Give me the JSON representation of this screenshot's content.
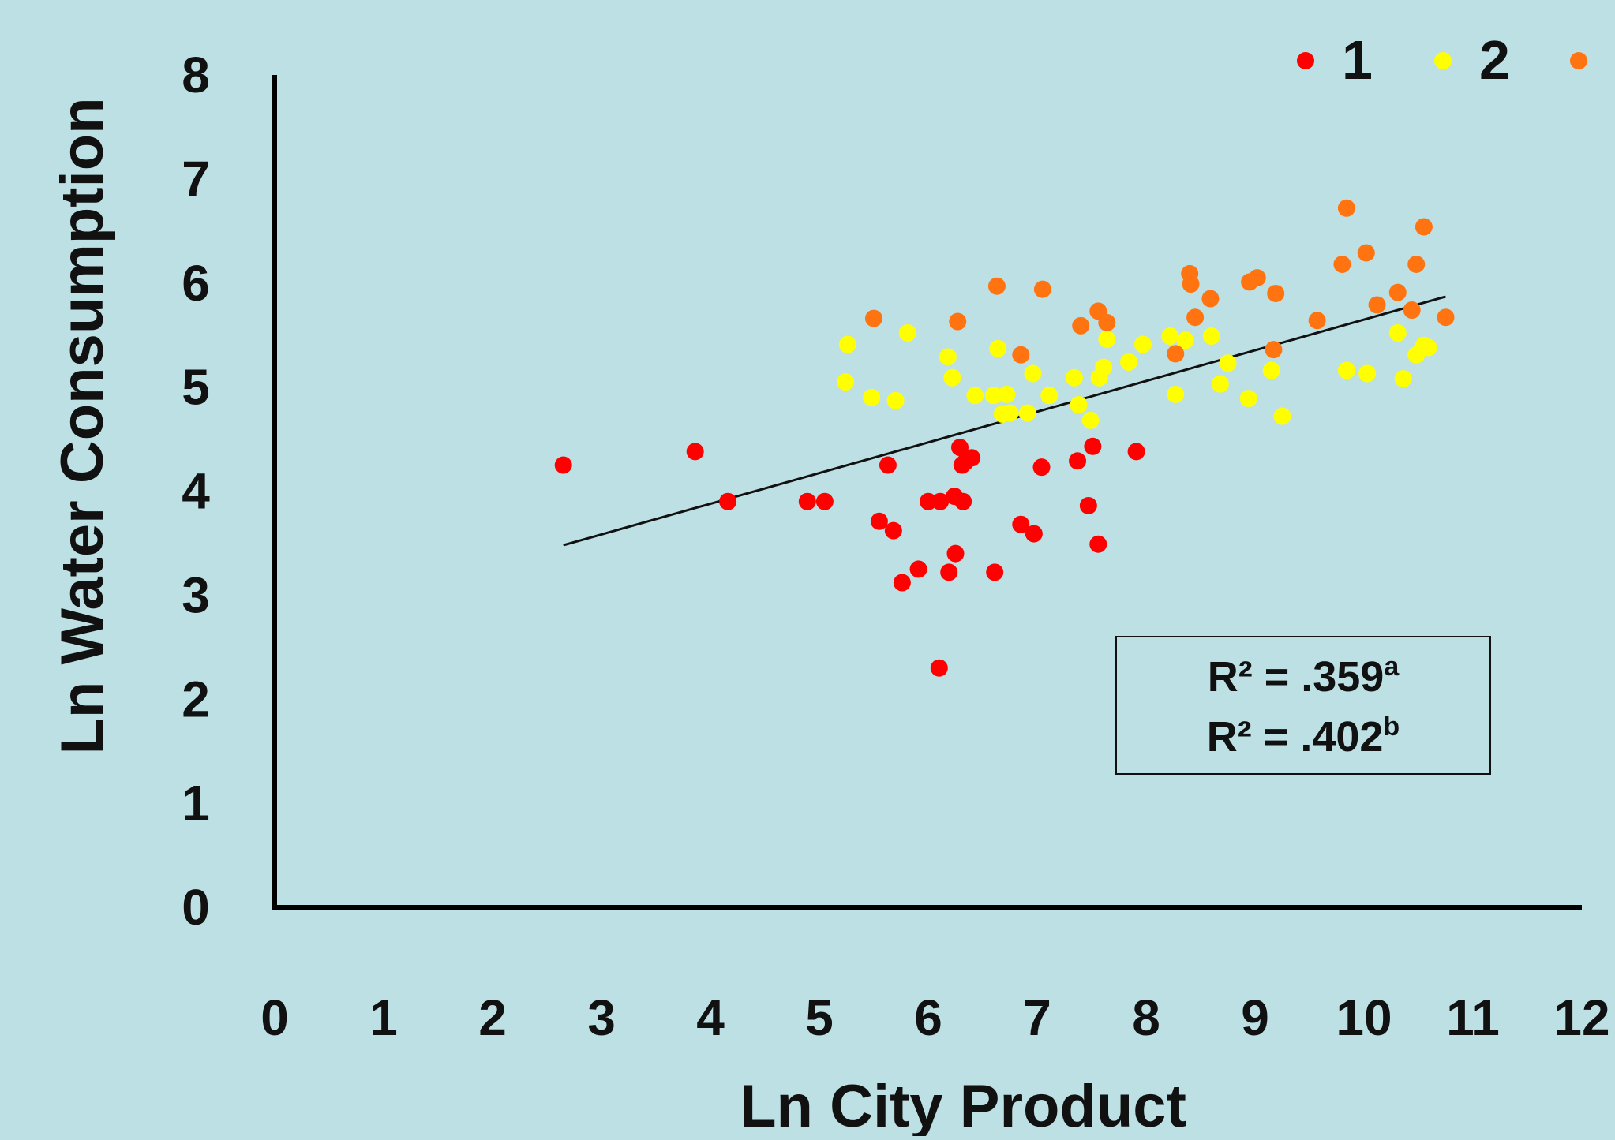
{
  "chart_data": {
    "type": "scatter",
    "title": "",
    "xlabel": "Ln City Product",
    "ylabel": "Ln Water Consumption",
    "xlim": [
      0,
      12
    ],
    "ylim": [
      0,
      8
    ],
    "x_ticks": [
      "0",
      "1",
      "2",
      "3",
      "4",
      "5",
      "6",
      "7",
      "8",
      "9",
      "10",
      "11",
      "12"
    ],
    "y_ticks": [
      "0",
      "1",
      "2",
      "3",
      "4",
      "5",
      "6",
      "7",
      "8"
    ],
    "grid": false,
    "legend_placement": "top-right",
    "annotation": {
      "lines": [
        {
          "text": "R² = .359",
          "sup": "a"
        },
        {
          "text": "R² = .402",
          "sup": "b"
        }
      ]
    },
    "trendline": {
      "x": [
        2.65,
        10.75
      ],
      "y": [
        3.48,
        5.87
      ]
    },
    "series": [
      {
        "name": "1",
        "color": "#ff0000",
        "points": [
          [
            2.65,
            4.25
          ],
          [
            3.86,
            4.38
          ],
          [
            4.16,
            3.9
          ],
          [
            4.89,
            3.9
          ],
          [
            5.05,
            3.9
          ],
          [
            5.55,
            3.71
          ],
          [
            5.63,
            4.25
          ],
          [
            5.68,
            3.62
          ],
          [
            5.76,
            3.12
          ],
          [
            5.91,
            3.25
          ],
          [
            6.0,
            3.9
          ],
          [
            6.1,
            2.3
          ],
          [
            6.11,
            3.9
          ],
          [
            6.19,
            3.22
          ],
          [
            6.24,
            3.95
          ],
          [
            6.25,
            3.4
          ],
          [
            6.29,
            4.42
          ],
          [
            6.31,
            4.25
          ],
          [
            6.32,
            3.9
          ],
          [
            6.34,
            4.28
          ],
          [
            6.4,
            4.32
          ],
          [
            6.61,
            3.22
          ],
          [
            6.85,
            3.68
          ],
          [
            6.97,
            3.59
          ],
          [
            7.04,
            4.23
          ],
          [
            7.37,
            4.29
          ],
          [
            7.47,
            3.86
          ],
          [
            7.51,
            4.43
          ],
          [
            7.56,
            3.49
          ],
          [
            7.91,
            4.38
          ]
        ]
      },
      {
        "name": "2",
        "color": "#ffff00",
        "points": [
          [
            5.24,
            5.05
          ],
          [
            5.26,
            5.41
          ],
          [
            5.48,
            4.9
          ],
          [
            5.7,
            4.87
          ],
          [
            5.81,
            5.52
          ],
          [
            6.18,
            5.29
          ],
          [
            6.22,
            5.09
          ],
          [
            6.43,
            4.92
          ],
          [
            6.6,
            4.92
          ],
          [
            6.64,
            5.37
          ],
          [
            6.68,
            4.74
          ],
          [
            6.72,
            4.93
          ],
          [
            6.75,
            4.75
          ],
          [
            6.91,
            4.75
          ],
          [
            6.96,
            5.13
          ],
          [
            7.11,
            4.92
          ],
          [
            7.34,
            5.09
          ],
          [
            7.38,
            4.83
          ],
          [
            7.49,
            4.68
          ],
          [
            7.57,
            5.09
          ],
          [
            7.61,
            5.19
          ],
          [
            7.64,
            5.46
          ],
          [
            7.84,
            5.24
          ],
          [
            7.97,
            5.41
          ],
          [
            8.22,
            5.49
          ],
          [
            8.27,
            4.93
          ],
          [
            8.36,
            5.45
          ],
          [
            8.6,
            5.49
          ],
          [
            8.68,
            5.03
          ],
          [
            8.75,
            5.23
          ],
          [
            8.94,
            4.89
          ],
          [
            9.15,
            5.16
          ],
          [
            9.25,
            4.72
          ],
          [
            9.84,
            5.16
          ],
          [
            10.03,
            5.13
          ],
          [
            10.31,
            5.52
          ],
          [
            10.36,
            5.08
          ],
          [
            10.48,
            5.31
          ],
          [
            10.55,
            5.4
          ],
          [
            10.59,
            5.38
          ]
        ]
      },
      {
        "name": "",
        "color": "#ff7410",
        "points": [
          [
            5.5,
            5.66
          ],
          [
            6.27,
            5.63
          ],
          [
            6.63,
            5.97
          ],
          [
            6.85,
            5.31
          ],
          [
            7.05,
            5.94
          ],
          [
            7.4,
            5.59
          ],
          [
            7.56,
            5.73
          ],
          [
            7.64,
            5.62
          ],
          [
            8.27,
            5.32
          ],
          [
            8.4,
            6.09
          ],
          [
            8.41,
            5.99
          ],
          [
            8.45,
            5.67
          ],
          [
            8.59,
            5.85
          ],
          [
            8.95,
            6.01
          ],
          [
            9.02,
            6.05
          ],
          [
            9.17,
            5.36
          ],
          [
            9.19,
            5.9
          ],
          [
            9.57,
            5.64
          ],
          [
            9.8,
            6.18
          ],
          [
            9.84,
            6.72
          ],
          [
            10.02,
            6.29
          ],
          [
            10.12,
            5.79
          ],
          [
            10.31,
            5.91
          ],
          [
            10.44,
            5.74
          ],
          [
            10.48,
            6.18
          ],
          [
            10.55,
            6.54
          ],
          [
            10.75,
            5.67
          ]
        ]
      }
    ]
  }
}
